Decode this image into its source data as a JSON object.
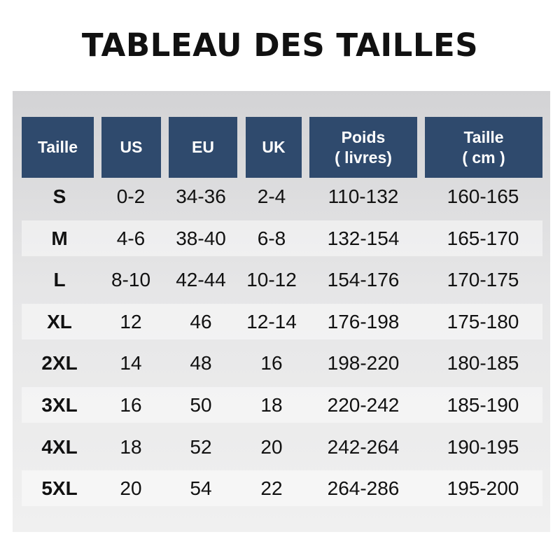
{
  "title": "TABLEAU DES TAILLES",
  "headers": [
    {
      "line1": "Taille",
      "line2": ""
    },
    {
      "line1": "US",
      "line2": ""
    },
    {
      "line1": "EU",
      "line2": ""
    },
    {
      "line1": "UK",
      "line2": ""
    },
    {
      "line1": "Poids",
      "line2": "( livres)"
    },
    {
      "line1": "Taille",
      "line2": "( cm )"
    }
  ],
  "header_color": "#2f4a6d",
  "rows": [
    [
      "S",
      "0-2",
      "34-36",
      "2-4",
      "110-132",
      "160-165"
    ],
    [
      "M",
      "4-6",
      "38-40",
      "6-8",
      "132-154",
      "165-170"
    ],
    [
      "L",
      "8-10",
      "42-44",
      "10-12",
      "154-176",
      "170-175"
    ],
    [
      "XL",
      "12",
      "46",
      "12-14",
      "176-198",
      "175-180"
    ],
    [
      "2XL",
      "14",
      "48",
      "16",
      "198-220",
      "180-185"
    ],
    [
      "3XL",
      "16",
      "50",
      "18",
      "220-242",
      "185-190"
    ],
    [
      "4XL",
      "18",
      "52",
      "20",
      "242-264",
      "190-195"
    ],
    [
      "5XL",
      "20",
      "54",
      "22",
      "264-286",
      "195-200"
    ]
  ]
}
